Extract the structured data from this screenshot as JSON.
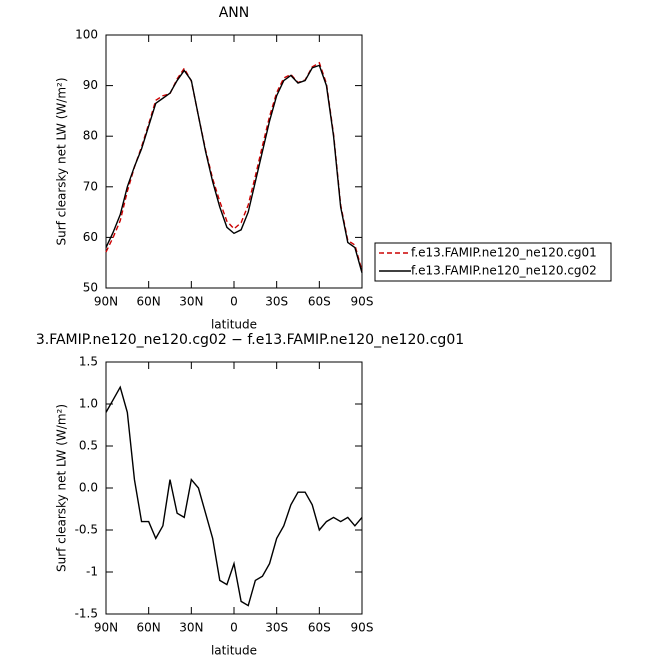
{
  "chart_data": [
    {
      "type": "line",
      "title": "ANN",
      "xlabel": "latitude",
      "ylabel": "Surf clearsky net LW (W/m²)",
      "x": [
        90,
        85,
        80,
        75,
        70,
        65,
        60,
        55,
        50,
        45,
        40,
        35,
        30,
        25,
        20,
        15,
        10,
        5,
        0,
        -5,
        -10,
        -15,
        -20,
        -25,
        -30,
        -35,
        -40,
        -45,
        -50,
        -55,
        -60,
        -65,
        -70,
        -75,
        -80,
        -85,
        -90
      ],
      "xlim": [
        90,
        -90
      ],
      "xticks": [
        {
          "value": 90,
          "label": "90N"
        },
        {
          "value": 60,
          "label": "60N"
        },
        {
          "value": 30,
          "label": "30N"
        },
        0,
        {
          "value": -30,
          "label": "30S"
        },
        {
          "value": -60,
          "label": "60S"
        },
        {
          "value": -90,
          "label": "90S"
        }
      ],
      "ylim": [
        50,
        100
      ],
      "yticks": [
        50,
        60,
        70,
        80,
        90,
        100
      ],
      "legend_position": "right",
      "series": [
        {
          "name": "f.e13.FAMIP.ne120_ne120.cg01",
          "color": "#cc0000",
          "dashed": true,
          "values": [
            57.1,
            60.0,
            63.3,
            69.1,
            73.9,
            77.9,
            82.4,
            87.1,
            88.0,
            88.4,
            91.3,
            93.4,
            90.9,
            84.0,
            77.3,
            71.6,
            67.1,
            63.2,
            61.7,
            62.9,
            66.4,
            72.1,
            78.1,
            83.9,
            88.6,
            91.5,
            92.2,
            90.6,
            91.1,
            93.7,
            94.5,
            90.4,
            80.4,
            66.4,
            59.4,
            58.5,
            53.4
          ]
        },
        {
          "name": "f.e13.FAMIP.ne120_ne120.cg02",
          "color": "#000000",
          "dashed": false,
          "values": [
            58,
            61,
            64.5,
            70,
            74,
            77.5,
            82,
            86.5,
            87.5,
            88.5,
            91,
            93,
            91,
            84,
            77,
            71,
            66,
            62,
            60.8,
            61.5,
            65,
            71,
            77,
            83,
            88,
            91,
            92,
            90.5,
            91,
            93.5,
            94,
            90,
            80,
            66,
            59,
            58,
            53
          ]
        }
      ]
    },
    {
      "type": "line",
      "title": "3.FAMIP.ne120_ne120.cg02 − f.e13.FAMIP.ne120_ne120.cg01",
      "xlabel": "latitude",
      "ylabel": "Surf clearsky net LW (W/m²)",
      "x": [
        90,
        85,
        80,
        75,
        70,
        65,
        60,
        55,
        50,
        45,
        40,
        35,
        30,
        25,
        20,
        15,
        10,
        5,
        0,
        -5,
        -10,
        -15,
        -20,
        -25,
        -30,
        -35,
        -40,
        -45,
        -50,
        -55,
        -60,
        -65,
        -70,
        -75,
        -80,
        -85,
        -90
      ],
      "xlim": [
        90,
        -90
      ],
      "xticks": [
        {
          "value": 90,
          "label": "90N"
        },
        {
          "value": 60,
          "label": "60N"
        },
        {
          "value": 30,
          "label": "30N"
        },
        0,
        {
          "value": -30,
          "label": "30S"
        },
        {
          "value": -60,
          "label": "60S"
        },
        {
          "value": -90,
          "label": "90S"
        }
      ],
      "ylim": [
        -1.5,
        1.5
      ],
      "yticks": [
        -1.5,
        -1,
        -0.5,
        {
          "value": 0,
          "label": "0.0"
        },
        0.5,
        {
          "value": 1,
          "label": "1.0"
        },
        1.5
      ],
      "series": [
        {
          "color": "#000000",
          "dashed": false,
          "values": [
            0.9,
            1.05,
            1.2,
            0.9,
            0.1,
            -0.4,
            -0.4,
            -0.6,
            -0.45,
            0.1,
            -0.3,
            -0.35,
            0.1,
            0.0,
            -0.3,
            -0.6,
            -1.1,
            -1.15,
            -0.9,
            -1.35,
            -1.4,
            -1.1,
            -1.05,
            -0.9,
            -0.6,
            -0.45,
            -0.2,
            -0.05,
            -0.05,
            -0.2,
            -0.5,
            -0.4,
            -0.35,
            -0.4,
            -0.35,
            -0.45,
            -0.35
          ]
        }
      ]
    }
  ]
}
